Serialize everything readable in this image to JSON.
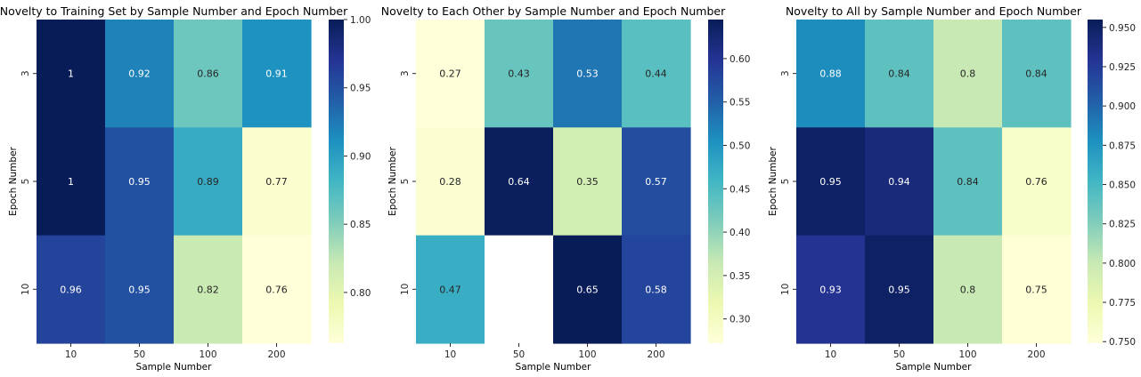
{
  "figure": {
    "colormap": "YlGnBu",
    "axis_tick_color": "#262626",
    "missing_cell_color": "#ffffff"
  },
  "chart_data": [
    {
      "type": "heatmap",
      "title": "Novelty to Training Set by Sample Number and Epoch Number",
      "xlabel": "Sample Number",
      "ylabel": "Epoch Number",
      "x_categories": [
        "10",
        "50",
        "100",
        "200"
      ],
      "y_categories": [
        "3",
        "5",
        "10"
      ],
      "values": [
        [
          1.0,
          0.92,
          0.86,
          0.91
        ],
        [
          1.0,
          0.95,
          0.89,
          0.77
        ],
        [
          0.96,
          0.95,
          0.82,
          0.76
        ]
      ],
      "annotations": [
        [
          "1",
          "0.92",
          "0.86",
          "0.91"
        ],
        [
          "1",
          "0.95",
          "0.89",
          "0.77"
        ],
        [
          "0.96",
          "0.95",
          "0.82",
          "0.76"
        ]
      ],
      "colorbar": {
        "min": 0.7628,
        "max": 1.0,
        "ticks": [
          "0.80",
          "0.85",
          "0.90",
          "0.95",
          "1.00"
        ]
      }
    },
    {
      "type": "heatmap",
      "title": "Novelty to Each Other by Sample Number and Epoch Number",
      "xlabel": "Sample Number",
      "ylabel": "Epoch Number",
      "x_categories": [
        "10",
        "50",
        "100",
        "200"
      ],
      "y_categories": [
        "3",
        "5",
        "10"
      ],
      "values": [
        [
          0.27,
          0.43,
          0.53,
          0.44
        ],
        [
          0.28,
          0.64,
          0.35,
          0.57
        ],
        [
          0.47,
          null,
          0.65,
          0.58
        ]
      ],
      "annotations": [
        [
          "0.27",
          "0.43",
          "0.53",
          "0.44"
        ],
        [
          "0.28",
          "0.64",
          "0.35",
          "0.57"
        ],
        [
          "0.47",
          "",
          "0.65",
          "0.58"
        ]
      ],
      "colorbar": {
        "min": 0.272,
        "max": 0.645,
        "ticks": [
          "0.30",
          "0.35",
          "0.40",
          "0.45",
          "0.50",
          "0.55",
          "0.60"
        ]
      }
    },
    {
      "type": "heatmap",
      "title": "Novelty to All by Sample Number and Epoch Number",
      "xlabel": "Sample Number",
      "ylabel": "Epoch Number",
      "x_categories": [
        "10",
        "50",
        "100",
        "200"
      ],
      "y_categories": [
        "3",
        "5",
        "10"
      ],
      "values": [
        [
          0.88,
          0.84,
          0.8,
          0.84
        ],
        [
          0.95,
          0.94,
          0.84,
          0.76
        ],
        [
          0.93,
          0.95,
          0.8,
          0.75
        ]
      ],
      "annotations": [
        [
          "0.88",
          "0.84",
          "0.8",
          "0.84"
        ],
        [
          "0.95",
          "0.94",
          "0.84",
          "0.76"
        ],
        [
          "0.93",
          "0.95",
          "0.8",
          "0.75"
        ]
      ],
      "colorbar": {
        "min": 0.749,
        "max": 0.955,
        "ticks": [
          "0.750",
          "0.775",
          "0.800",
          "0.825",
          "0.850",
          "0.875",
          "0.900",
          "0.925",
          "0.950"
        ]
      }
    }
  ]
}
